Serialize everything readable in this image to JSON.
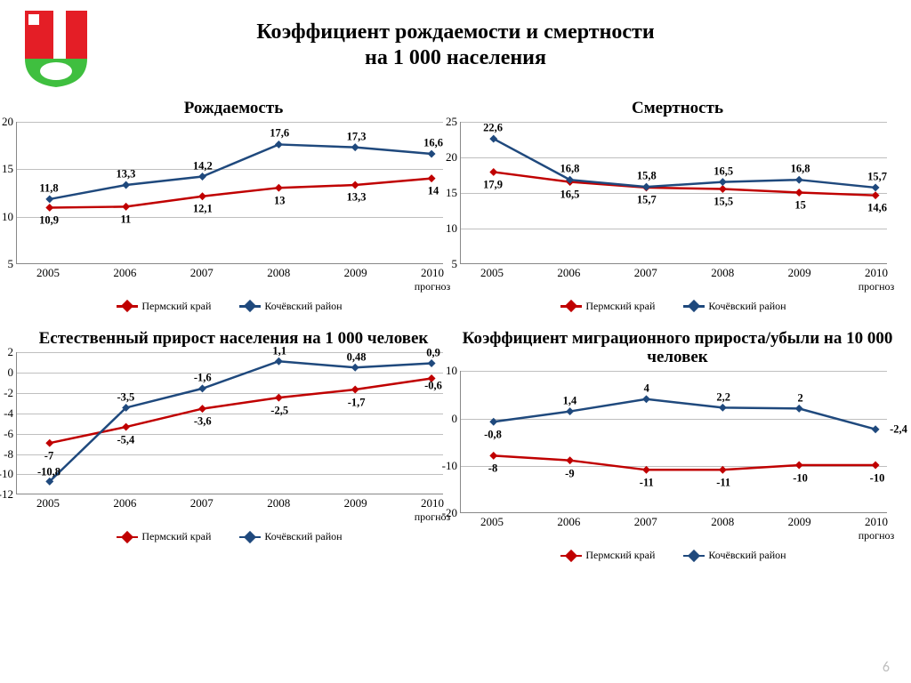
{
  "page_number": "6",
  "main_title_l1": "Коэффициент рождаемости и смертности",
  "main_title_l2": "на 1 000 населения",
  "categories": [
    "2005",
    "2006",
    "2007",
    "2008",
    "2009",
    "2010"
  ],
  "forecast_label": "прогноз",
  "series_names": {
    "perm": "Пермский  край",
    "koch": "Кочёвский район"
  },
  "colors": {
    "perm": "#c00000",
    "koch": "#1f497d",
    "grid": "#bfbfbf",
    "axis": "#7f7f7f",
    "text": "#000000",
    "bg": "#ffffff"
  },
  "marker": {
    "shape": "diamond",
    "size": 9
  },
  "line_width": 2.5,
  "label_fontsize": 12.5,
  "charts": [
    {
      "title": "Рождаемость",
      "ylim": [
        5,
        20
      ],
      "ytick_step": 5,
      "series": {
        "perm": {
          "values": [
            10.9,
            11,
            12.1,
            13,
            13.3,
            14
          ],
          "labels": [
            "10,9",
            "11",
            "12,1",
            "13",
            "13,3",
            "14"
          ],
          "label_pos": "below"
        },
        "koch": {
          "values": [
            11.8,
            13.3,
            14.2,
            17.6,
            17.3,
            16.6
          ],
          "labels": [
            "11,8",
            "13,3",
            "14,2",
            "17,6",
            "17,3",
            "16,6"
          ],
          "label_pos": "above"
        }
      }
    },
    {
      "title": "Смертность",
      "ylim": [
        5,
        25
      ],
      "ytick_step": 5,
      "series": {
        "perm": {
          "values": [
            17.9,
            16.5,
            15.7,
            15.5,
            15,
            14.6
          ],
          "labels": [
            "17,9",
            "16,5",
            "15,7",
            "15,5",
            "15",
            "14,6"
          ],
          "label_pos": "below"
        },
        "koch": {
          "values": [
            22.6,
            16.8,
            15.8,
            16.5,
            16.8,
            15.7
          ],
          "labels": [
            "22,6",
            "16,8",
            "15,8",
            "16,5",
            "16,8",
            "15,7"
          ],
          "label_pos": "above"
        }
      }
    },
    {
      "title": "Естественный прирост населения на 1 000 человек",
      "ylim": [
        -12,
        2
      ],
      "ytick_step": 2,
      "series": {
        "perm": {
          "values": [
            -7,
            -5.4,
            -3.6,
            -2.5,
            -1.7,
            -0.6
          ],
          "labels": [
            "-7",
            "-5,4",
            "-3,6",
            "-2,5",
            "-1,7",
            "-0,6"
          ],
          "label_pos": "below",
          "label_offsets_y": [
            14,
            14,
            14,
            14,
            14,
            8
          ]
        },
        "koch": {
          "values": [
            -10.8,
            -3.5,
            -1.6,
            1.1,
            0.48,
            0.9
          ],
          "labels": [
            "-10,8",
            "-3,5",
            "-1,6",
            "1,1",
            "0,48",
            "0,9"
          ],
          "label_pos": "above"
        }
      }
    },
    {
      "title": "Коэффициент миграционного прироста/убыли на 10 000 человек",
      "ylim": [
        -20,
        10
      ],
      "ytick_step": 10,
      "series": {
        "perm": {
          "values": [
            -8,
            -9,
            -11,
            -11,
            -10,
            -10
          ],
          "labels": [
            "-8",
            "-9",
            "-11",
            "-11",
            "-10",
            "-10"
          ],
          "label_pos": "below"
        },
        "koch": {
          "values": [
            -0.8,
            1.4,
            4,
            2.2,
            2,
            -2.4
          ],
          "labels": [
            "-0,8",
            "1,4",
            "4",
            "2,2",
            "2",
            "-2,4"
          ],
          "label_pos": "auto"
        }
      }
    }
  ],
  "logo": {
    "shield_fill": "#e41e26",
    "shield_green": "#3fbf3f",
    "bar_white": "#ffffff",
    "square_white": "#ffffff"
  }
}
